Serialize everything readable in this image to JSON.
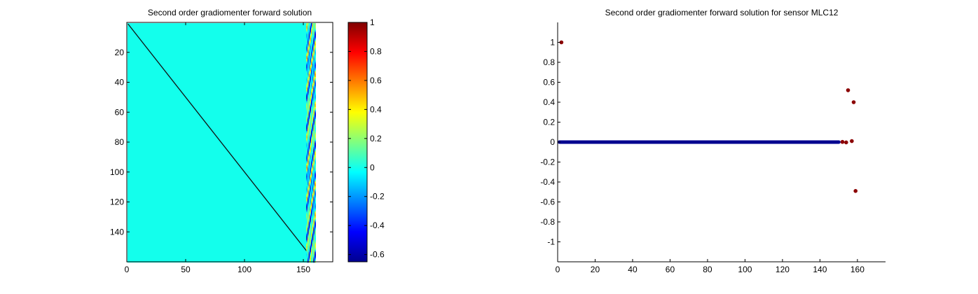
{
  "chart_data": [
    {
      "type": "heatmap",
      "title": "Second order gradiomenter forward solution",
      "xlim": [
        0,
        175
      ],
      "ylim": [
        0,
        160
      ],
      "y_reversed": true,
      "xticks": [
        0,
        50,
        100,
        150
      ],
      "yticks": [
        20,
        40,
        60,
        80,
        100,
        120,
        140
      ],
      "matrix_cols": 160,
      "matrix_rows": 160,
      "background_value": 0,
      "diagonal_value": -0.62,
      "diagonal_color": "#111111",
      "reference_columns": [
        153,
        154,
        155,
        156,
        157,
        158,
        159,
        160
      ],
      "colormap": "jet",
      "colorbar": {
        "clim": [
          -0.65,
          1
        ],
        "ticks": [
          1,
          0.8,
          0.6,
          0.4,
          0.2,
          0,
          -0.2,
          -0.4,
          -0.6
        ]
      },
      "grid": false
    },
    {
      "type": "scatter",
      "title": "Second order gradiomenter forward solution for sensor MLC12",
      "xlim": [
        0,
        175
      ],
      "ylim": [
        -1.2,
        1.2
      ],
      "xticks": [
        0,
        20,
        40,
        60,
        80,
        100,
        120,
        140,
        160
      ],
      "yticks": [
        1,
        0.8,
        0.6,
        0.4,
        0.2,
        0,
        -0.2,
        -0.4,
        -0.6,
        -0.8,
        -1
      ],
      "zero_run": {
        "from": 0,
        "to": 151,
        "value": 0,
        "color": "#00008f"
      },
      "highlighted_points": [
        {
          "x": 2,
          "y": 1
        },
        {
          "x": 152,
          "y": 0.002
        },
        {
          "x": 154,
          "y": -0.003
        },
        {
          "x": 155,
          "y": 0.52
        },
        {
          "x": 157,
          "y": 0.01
        },
        {
          "x": 158,
          "y": 0.4
        },
        {
          "x": 159,
          "y": -0.49
        }
      ],
      "highlight_color": "#8b0000",
      "grid": false
    }
  ]
}
